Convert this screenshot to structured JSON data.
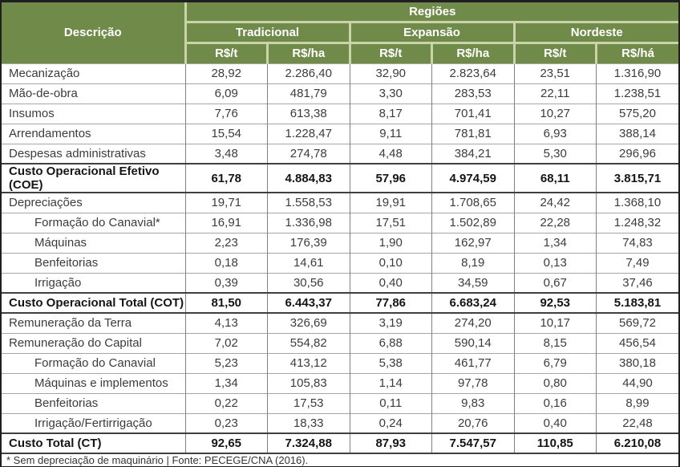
{
  "colors": {
    "header_green": "#708a49",
    "header_text": "#ffffff",
    "header_separator": "#c9d5a8",
    "row_line": "#a6a6a6",
    "column_line": "#808080",
    "total_row_line": "#404040",
    "body_text": "#3c3c3c",
    "outer_border": "#1f1f1f"
  },
  "table": {
    "header": {
      "descricao": "Descrição",
      "regioes": "Regiões",
      "regions": [
        "Tradicional",
        "Expansão",
        "Nordeste"
      ],
      "units": [
        "R$/t",
        "R$/ha",
        "R$/t",
        "R$/ha",
        "R$/t",
        "R$/há"
      ]
    },
    "rows": [
      {
        "label": "Mecanização",
        "indent": false,
        "bold": false,
        "values": [
          "28,92",
          "2.286,40",
          "32,90",
          "2.823,64",
          "23,51",
          "1.316,90"
        ]
      },
      {
        "label": "Mão-de-obra",
        "indent": false,
        "bold": false,
        "values": [
          "6,09",
          "481,79",
          "3,30",
          "283,53",
          "22,11",
          "1.238,51"
        ]
      },
      {
        "label": "Insumos",
        "indent": false,
        "bold": false,
        "values": [
          "7,76",
          "613,38",
          "8,17",
          "701,41",
          "10,27",
          "575,20"
        ]
      },
      {
        "label": "Arrendamentos",
        "indent": false,
        "bold": false,
        "values": [
          "15,54",
          "1.228,47",
          "9,11",
          "781,81",
          "6,93",
          "388,14"
        ]
      },
      {
        "label": "Despesas administrativas",
        "indent": false,
        "bold": false,
        "values": [
          "3,48",
          "274,78",
          "4,48",
          "384,21",
          "5,30",
          "296,96"
        ]
      },
      {
        "label": "Custo Operacional Efetivo (COE)",
        "indent": false,
        "bold": true,
        "values": [
          "61,78",
          "4.884,83",
          "57,96",
          "4.974,59",
          "68,11",
          "3.815,71"
        ]
      },
      {
        "label": "Depreciações",
        "indent": false,
        "bold": false,
        "values": [
          "19,71",
          "1.558,53",
          "19,91",
          "1.708,65",
          "24,42",
          "1.368,10"
        ]
      },
      {
        "label": "Formação do Canavial*",
        "indent": true,
        "bold": false,
        "values": [
          "16,91",
          "1.336,98",
          "17,51",
          "1.502,89",
          "22,28",
          "1.248,32"
        ]
      },
      {
        "label": "Máquinas",
        "indent": true,
        "bold": false,
        "values": [
          "2,23",
          "176,39",
          "1,90",
          "162,97",
          "1,34",
          "74,83"
        ]
      },
      {
        "label": "Benfeitorias",
        "indent": true,
        "bold": false,
        "values": [
          "0,18",
          "14,61",
          "0,10",
          "8,19",
          "0,13",
          "7,49"
        ]
      },
      {
        "label": "Irrigação",
        "indent": true,
        "bold": false,
        "values": [
          "0,39",
          "30,56",
          "0,40",
          "34,59",
          "0,67",
          "37,46"
        ]
      },
      {
        "label": "Custo Operacional Total (COT)",
        "indent": false,
        "bold": true,
        "values": [
          "81,50",
          "6.443,37",
          "77,86",
          "6.683,24",
          "92,53",
          "5.183,81"
        ]
      },
      {
        "label": "Remuneração da Terra",
        "indent": false,
        "bold": false,
        "values": [
          "4,13",
          "326,69",
          "3,19",
          "274,20",
          "10,17",
          "569,72"
        ]
      },
      {
        "label": "Remuneração do Capital",
        "indent": false,
        "bold": false,
        "values": [
          "7,02",
          "554,82",
          "6,88",
          "590,14",
          "8,15",
          "456,54"
        ]
      },
      {
        "label": "Formação do Canavial",
        "indent": true,
        "bold": false,
        "values": [
          "5,23",
          "413,12",
          "5,38",
          "461,77",
          "6,79",
          "380,18"
        ]
      },
      {
        "label": "Máquinas e implementos",
        "indent": true,
        "bold": false,
        "values": [
          "1,34",
          "105,83",
          "1,14",
          "97,78",
          "0,80",
          "44,90"
        ]
      },
      {
        "label": "Benfeitorias",
        "indent": true,
        "bold": false,
        "values": [
          "0,22",
          "17,53",
          "0,11",
          "9,83",
          "0,16",
          "8,99"
        ]
      },
      {
        "label": "Irrigação/Fertirrigação",
        "indent": true,
        "bold": false,
        "values": [
          "0,23",
          "18,33",
          "0,24",
          "20,76",
          "0,40",
          "22,48"
        ]
      },
      {
        "label": "Custo Total (CT)",
        "indent": false,
        "bold": true,
        "values": [
          "92,65",
          "7.324,88",
          "87,93",
          "7.547,57",
          "110,85",
          "6.210,08"
        ]
      }
    ],
    "footnote": "* Sem depreciação de maquinário | Fonte: PECEGE/CNA (2016)."
  }
}
